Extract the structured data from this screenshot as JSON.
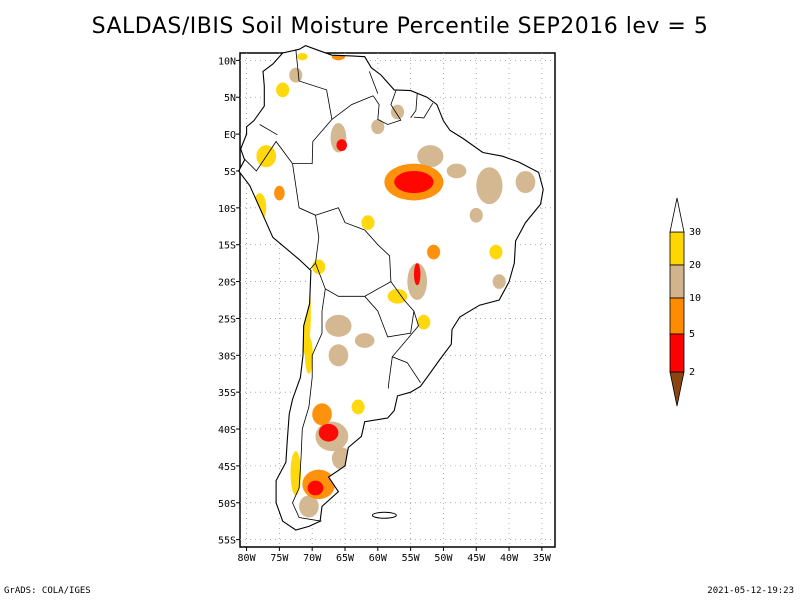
{
  "title": "SALDAS/IBIS Soil Moisture Percentile SEP2016 lev = 5",
  "colors": {
    "very_dry": "#8B4513",
    "dry": "#FF0000",
    "moderate": "#FF8C00",
    "slight": "#D2B48C",
    "near": "#FFD700",
    "above": "#FFFFFF"
  },
  "chart_data": {
    "type": "map",
    "region": "South America",
    "xlim": [
      -81,
      -33
    ],
    "ylim": [
      -56,
      11
    ],
    "lon_ticks": [
      {
        "value": -80,
        "label": "80W"
      },
      {
        "value": -75,
        "label": "75W"
      },
      {
        "value": -70,
        "label": "70W"
      },
      {
        "value": -65,
        "label": "65W"
      },
      {
        "value": -60,
        "label": "60W"
      },
      {
        "value": -55,
        "label": "55W"
      },
      {
        "value": -50,
        "label": "50W"
      },
      {
        "value": -45,
        "label": "45W"
      },
      {
        "value": -40,
        "label": "40W"
      },
      {
        "value": -35,
        "label": "35W"
      }
    ],
    "lat_ticks": [
      {
        "value": 10,
        "label": "10N"
      },
      {
        "value": 5,
        "label": "5N"
      },
      {
        "value": 0,
        "label": "EQ"
      },
      {
        "value": -5,
        "label": "5S"
      },
      {
        "value": -10,
        "label": "10S"
      },
      {
        "value": -15,
        "label": "15S"
      },
      {
        "value": -20,
        "label": "20S"
      },
      {
        "value": -25,
        "label": "25S"
      },
      {
        "value": -30,
        "label": "30S"
      },
      {
        "value": -35,
        "label": "35S"
      },
      {
        "value": -40,
        "label": "40S"
      },
      {
        "value": -45,
        "label": "45S"
      },
      {
        "value": -50,
        "label": "50S"
      },
      {
        "value": -55,
        "label": "55S"
      }
    ],
    "grid": true,
    "colorbar": {
      "labels": [
        "2",
        "5",
        "10",
        "20",
        "30"
      ],
      "colors": [
        "#8B4513",
        "#FF0000",
        "#FF8C00",
        "#D2B48C",
        "#FFD700",
        "#FFFFFF"
      ]
    },
    "anomaly_patches": [
      {
        "lon": -54.5,
        "lat": -6.5,
        "rx": 3.0,
        "ry": 1.5,
        "cls": 1
      },
      {
        "lon": -54.5,
        "lat": -6.5,
        "rx": 4.5,
        "ry": 2.5,
        "cls": 2
      },
      {
        "lon": -65.5,
        "lat": -1.5,
        "rx": 0.8,
        "ry": 0.8,
        "cls": 1
      },
      {
        "lon": -66.0,
        "lat": -0.5,
        "rx": 1.2,
        "ry": 2.0,
        "cls": 3
      },
      {
        "lon": -60.0,
        "lat": 1.0,
        "rx": 1.0,
        "ry": 1.0,
        "cls": 3
      },
      {
        "lon": -57.0,
        "lat": 3.0,
        "rx": 1.0,
        "ry": 1.0,
        "cls": 3
      },
      {
        "lon": -52.0,
        "lat": -3.0,
        "rx": 2.0,
        "ry": 1.5,
        "cls": 3
      },
      {
        "lon": -48.0,
        "lat": -5.0,
        "rx": 1.5,
        "ry": 1.0,
        "cls": 3
      },
      {
        "lon": -43.0,
        "lat": -7.0,
        "rx": 2.0,
        "ry": 2.5,
        "cls": 3
      },
      {
        "lon": -37.5,
        "lat": -6.5,
        "rx": 1.5,
        "ry": 1.5,
        "cls": 3
      },
      {
        "lon": -45.0,
        "lat": -11.0,
        "rx": 1.0,
        "ry": 1.0,
        "cls": 3
      },
      {
        "lon": -42.0,
        "lat": -16.0,
        "rx": 1.0,
        "ry": 1.0,
        "cls": 4
      },
      {
        "lon": -41.5,
        "lat": -20.0,
        "rx": 1.0,
        "ry": 1.0,
        "cls": 3
      },
      {
        "lon": -51.5,
        "lat": -16.0,
        "rx": 1.0,
        "ry": 1.0,
        "cls": 2
      },
      {
        "lon": -54.0,
        "lat": -20.0,
        "rx": 1.5,
        "ry": 2.5,
        "cls": 3
      },
      {
        "lon": -54.0,
        "lat": -19.0,
        "rx": 0.5,
        "ry": 1.5,
        "cls": 1
      },
      {
        "lon": -57.0,
        "lat": -22.0,
        "rx": 1.5,
        "ry": 1.0,
        "cls": 4
      },
      {
        "lon": -53.0,
        "lat": -25.5,
        "rx": 1.0,
        "ry": 1.0,
        "cls": 4
      },
      {
        "lon": -77.0,
        "lat": -3.0,
        "rx": 1.5,
        "ry": 1.5,
        "cls": 4
      },
      {
        "lon": -75.0,
        "lat": -8.0,
        "rx": 0.8,
        "ry": 1.0,
        "cls": 2
      },
      {
        "lon": -78.0,
        "lat": -10.0,
        "rx": 1.0,
        "ry": 2.0,
        "cls": 4
      },
      {
        "lon": -71.0,
        "lat": -24.0,
        "rx": 0.8,
        "ry": 6.0,
        "cls": 4
      },
      {
        "lon": -69.0,
        "lat": -18.0,
        "rx": 1.0,
        "ry": 1.0,
        "cls": 4
      },
      {
        "lon": -66.0,
        "lat": -26.0,
        "rx": 2.0,
        "ry": 1.5,
        "cls": 3
      },
      {
        "lon": -62.0,
        "lat": -28.0,
        "rx": 1.5,
        "ry": 1.0,
        "cls": 3
      },
      {
        "lon": -66.0,
        "lat": -30.0,
        "rx": 1.5,
        "ry": 1.5,
        "cls": 3
      },
      {
        "lon": -70.5,
        "lat": -30.0,
        "rx": 0.6,
        "ry": 2.5,
        "cls": 4
      },
      {
        "lon": -68.5,
        "lat": -38.0,
        "rx": 1.5,
        "ry": 1.5,
        "cls": 2
      },
      {
        "lon": -67.0,
        "lat": -41.0,
        "rx": 2.5,
        "ry": 2.0,
        "cls": 3
      },
      {
        "lon": -67.5,
        "lat": -40.5,
        "rx": 1.5,
        "ry": 1.2,
        "cls": 1
      },
      {
        "lon": -65.5,
        "lat": -44.0,
        "rx": 1.5,
        "ry": 1.5,
        "cls": 3
      },
      {
        "lon": -69.0,
        "lat": -47.5,
        "rx": 2.5,
        "ry": 2.0,
        "cls": 2
      },
      {
        "lon": -69.5,
        "lat": -48.0,
        "rx": 1.2,
        "ry": 1.0,
        "cls": 1
      },
      {
        "lon": -70.5,
        "lat": -50.5,
        "rx": 1.5,
        "ry": 1.5,
        "cls": 3
      },
      {
        "lon": -72.5,
        "lat": -46.0,
        "rx": 0.8,
        "ry": 3.0,
        "cls": 4
      },
      {
        "lon": -63.0,
        "lat": -37.0,
        "rx": 1.0,
        "ry": 1.0,
        "cls": 4
      },
      {
        "lon": -72.5,
        "lat": 8.0,
        "rx": 1.0,
        "ry": 1.0,
        "cls": 3
      },
      {
        "lon": -74.5,
        "lat": 6.0,
        "rx": 1.0,
        "ry": 1.0,
        "cls": 4
      },
      {
        "lon": -66.0,
        "lat": 10.5,
        "rx": 1.0,
        "ry": 0.5,
        "cls": 2
      },
      {
        "lon": -61.5,
        "lat": -12.0,
        "rx": 1.0,
        "ry": 1.0,
        "cls": 4
      },
      {
        "lon": -71.5,
        "lat": 10.5,
        "rx": 0.8,
        "ry": 0.5,
        "cls": 4
      }
    ]
  },
  "footer_left": "GrADS: COLA/IGES",
  "footer_right": "2021-05-12-19:23"
}
